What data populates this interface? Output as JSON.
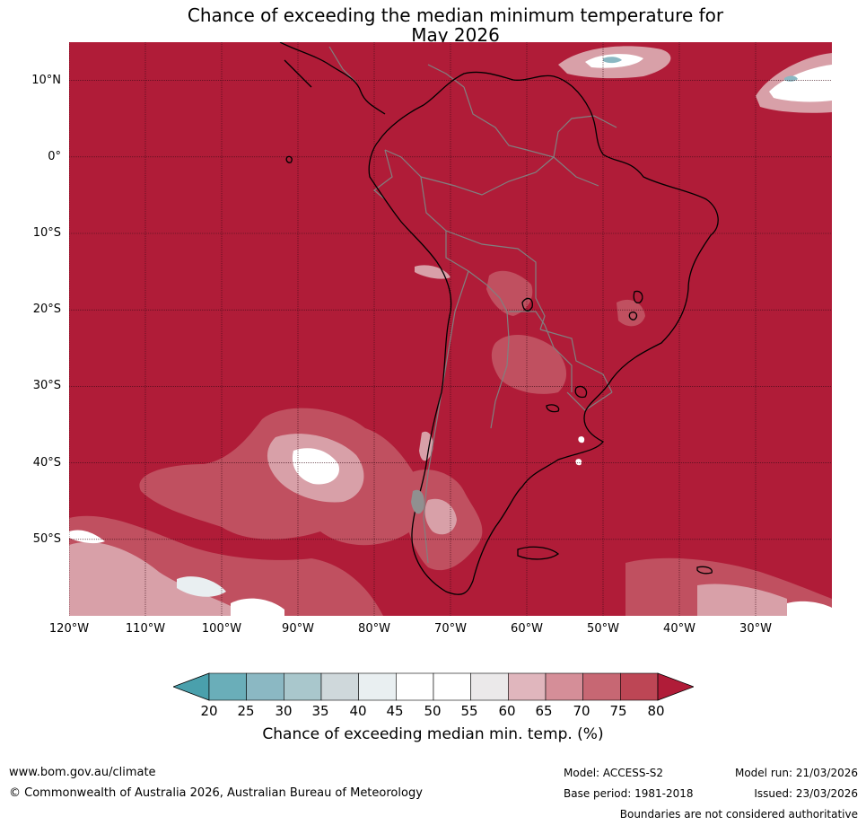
{
  "title_line1": "Chance of exceeding the median minimum temperature for",
  "title_line2": "May 2026",
  "lat_labels": [
    "10°N",
    "0°",
    "10°S",
    "20°S",
    "30°S",
    "40°S",
    "50°S"
  ],
  "lat_values": [
    10,
    0,
    -10,
    -20,
    -30,
    -40,
    -50
  ],
  "lon_labels": [
    "120°W",
    "110°W",
    "100°W",
    "90°W",
    "80°W",
    "70°W",
    "60°W",
    "50°W",
    "40°W",
    "30°W"
  ],
  "lon_values": [
    -120,
    -110,
    -100,
    -90,
    -80,
    -70,
    -60,
    -50,
    -40,
    -30
  ],
  "map_extent": {
    "lon_min": -120,
    "lon_max": -20,
    "lat_min": -60,
    "lat_max": 15
  },
  "colorbar": {
    "ticks": [
      "20",
      "25",
      "30",
      "35",
      "40",
      "45",
      "50",
      "55",
      "60",
      "65",
      "70",
      "75",
      "80"
    ],
    "colors": [
      "#6aaeb9",
      "#8bb8c3",
      "#a9c7cc",
      "#cfd8db",
      "#e9eff1",
      "#ffffff",
      "#ffffff",
      "#ebe9ea",
      "#e0b6bd",
      "#d58e98",
      "#c76773",
      "#bd4655"
    ],
    "low_color": "#4aa0ac",
    "high_color": "#b01c38",
    "label": "Chance of exceeding median min. temp. (%)"
  },
  "colors": {
    "dominant": "#b01c38",
    "mid": "#c05060",
    "light": "#d8a0a8",
    "coast": "#000000",
    "border": "#808080"
  },
  "footer": {
    "website": "www.bom.gov.au/climate",
    "copyright": "© Commonwealth of Australia 2026, Australian Bureau of Meteorology",
    "model": "Model: ACCESS-S2",
    "base_period": "Base period: 1981-2018",
    "model_run": "Model run: 21/03/2026",
    "issued": "Issued: 23/03/2026",
    "disclaimer": "Boundaries are not considered authoritative"
  }
}
